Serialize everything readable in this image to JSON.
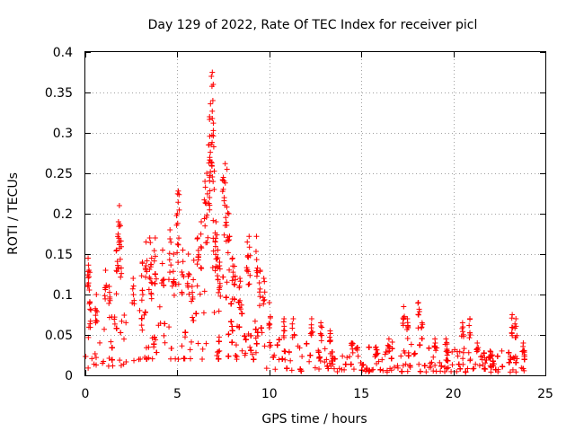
{
  "chart_data": {
    "type": "scatter",
    "title": "Day 129 of 2022, Rate Of TEC Index for receiver picl",
    "xlabel": "GPS time / hours",
    "ylabel": "ROTI / TECUs",
    "xlim": [
      0,
      25
    ],
    "ylim": [
      0,
      0.4
    ],
    "xticks": [
      0,
      5,
      10,
      15,
      20,
      25
    ],
    "xtick_labels": [
      "0",
      "5",
      "10",
      "15",
      "20",
      "25"
    ],
    "yticks": [
      0,
      0.05,
      0.1,
      0.15,
      0.2,
      0.25,
      0.3,
      0.35,
      0.4
    ],
    "ytick_labels": [
      "0",
      "0.05",
      "0.1",
      "0.15",
      "0.2",
      "0.25",
      "0.3",
      "0.35",
      "0.4"
    ],
    "grid": true,
    "marker": "plus",
    "color": "#ff0000",
    "envelope": {
      "x": [
        0.0,
        0.5,
        1.0,
        1.5,
        2.0,
        2.5,
        3.0,
        3.5,
        4.0,
        4.5,
        5.0,
        5.5,
        6.0,
        6.5,
        7.0,
        7.5,
        8.0,
        8.5,
        9.0,
        9.5,
        10.0,
        11.0,
        12.0,
        13.0,
        14.0,
        15.0,
        16.0,
        17.0,
        17.5,
        18.0,
        19.0,
        20.0,
        20.5,
        21.0,
        22.0,
        23.0,
        23.5,
        24.0
      ],
      "upper": [
        0.06,
        0.07,
        0.08,
        0.09,
        0.08,
        0.1,
        0.11,
        0.12,
        0.13,
        0.13,
        0.12,
        0.13,
        0.15,
        0.17,
        0.18,
        0.15,
        0.12,
        0.1,
        0.08,
        0.06,
        0.05,
        0.045,
        0.04,
        0.035,
        0.035,
        0.035,
        0.035,
        0.045,
        0.05,
        0.04,
        0.035,
        0.035,
        0.04,
        0.035,
        0.03,
        0.035,
        0.03,
        0.025
      ],
      "lower": [
        0.005,
        0.01,
        0.01,
        0.01,
        0.01,
        0.015,
        0.02,
        0.02,
        0.02,
        0.02,
        0.02,
        0.02,
        0.02,
        0.02,
        0.02,
        0.02,
        0.015,
        0.015,
        0.01,
        0.01,
        0.008,
        0.006,
        0.005,
        0.005,
        0.004,
        0.004,
        0.004,
        0.004,
        0.004,
        0.004,
        0.004,
        0.004,
        0.004,
        0.004,
        0.004,
        0.004,
        0.004,
        0.004
      ]
    },
    "peaks": [
      {
        "x": 0.15,
        "y": 0.145
      },
      {
        "x": 0.2,
        "y": 0.13
      },
      {
        "x": 0.25,
        "y": 0.09
      },
      {
        "x": 0.6,
        "y": 0.1
      },
      {
        "x": 1.1,
        "y": 0.13
      },
      {
        "x": 1.3,
        "y": 0.11
      },
      {
        "x": 1.7,
        "y": 0.155
      },
      {
        "x": 1.8,
        "y": 0.19
      },
      {
        "x": 1.85,
        "y": 0.21
      },
      {
        "x": 1.9,
        "y": 0.185
      },
      {
        "x": 2.6,
        "y": 0.12
      },
      {
        "x": 3.1,
        "y": 0.14
      },
      {
        "x": 3.3,
        "y": 0.165
      },
      {
        "x": 3.5,
        "y": 0.17
      },
      {
        "x": 3.6,
        "y": 0.145
      },
      {
        "x": 3.8,
        "y": 0.17
      },
      {
        "x": 4.2,
        "y": 0.155
      },
      {
        "x": 4.6,
        "y": 0.18
      },
      {
        "x": 4.8,
        "y": 0.15
      },
      {
        "x": 5.0,
        "y": 0.2
      },
      {
        "x": 5.05,
        "y": 0.228
      },
      {
        "x": 5.3,
        "y": 0.155
      },
      {
        "x": 5.6,
        "y": 0.15
      },
      {
        "x": 5.8,
        "y": 0.11
      },
      {
        "x": 6.1,
        "y": 0.17
      },
      {
        "x": 6.3,
        "y": 0.19
      },
      {
        "x": 6.5,
        "y": 0.24
      },
      {
        "x": 6.6,
        "y": 0.25
      },
      {
        "x": 6.7,
        "y": 0.285
      },
      {
        "x": 6.75,
        "y": 0.32
      },
      {
        "x": 6.8,
        "y": 0.336
      },
      {
        "x": 6.85,
        "y": 0.37
      },
      {
        "x": 6.9,
        "y": 0.375
      },
      {
        "x": 6.95,
        "y": 0.36
      },
      {
        "x": 7.0,
        "y": 0.23
      },
      {
        "x": 7.1,
        "y": 0.19
      },
      {
        "x": 7.2,
        "y": 0.155
      },
      {
        "x": 7.3,
        "y": 0.14
      },
      {
        "x": 7.5,
        "y": 0.245
      },
      {
        "x": 7.6,
        "y": 0.262
      },
      {
        "x": 7.7,
        "y": 0.255
      },
      {
        "x": 7.8,
        "y": 0.2
      },
      {
        "x": 8.0,
        "y": 0.145
      },
      {
        "x": 8.1,
        "y": 0.135
      },
      {
        "x": 8.4,
        "y": 0.12
      },
      {
        "x": 8.8,
        "y": 0.165
      },
      {
        "x": 8.9,
        "y": 0.172
      },
      {
        "x": 9.3,
        "y": 0.172
      },
      {
        "x": 9.5,
        "y": 0.13
      },
      {
        "x": 9.7,
        "y": 0.12
      },
      {
        "x": 10.0,
        "y": 0.09
      },
      {
        "x": 10.8,
        "y": 0.07
      },
      {
        "x": 11.3,
        "y": 0.07
      },
      {
        "x": 12.3,
        "y": 0.07
      },
      {
        "x": 12.8,
        "y": 0.065
      },
      {
        "x": 13.3,
        "y": 0.055
      },
      {
        "x": 14.5,
        "y": 0.04
      },
      {
        "x": 15.8,
        "y": 0.035
      },
      {
        "x": 16.5,
        "y": 0.045
      },
      {
        "x": 17.3,
        "y": 0.085
      },
      {
        "x": 17.5,
        "y": 0.07
      },
      {
        "x": 18.1,
        "y": 0.09
      },
      {
        "x": 18.3,
        "y": 0.065
      },
      {
        "x": 19.0,
        "y": 0.045
      },
      {
        "x": 19.6,
        "y": 0.045
      },
      {
        "x": 20.5,
        "y": 0.065
      },
      {
        "x": 20.9,
        "y": 0.07
      },
      {
        "x": 21.3,
        "y": 0.04
      },
      {
        "x": 22.0,
        "y": 0.03
      },
      {
        "x": 23.2,
        "y": 0.075
      },
      {
        "x": 23.4,
        "y": 0.07
      },
      {
        "x": 23.8,
        "y": 0.04
      }
    ]
  }
}
